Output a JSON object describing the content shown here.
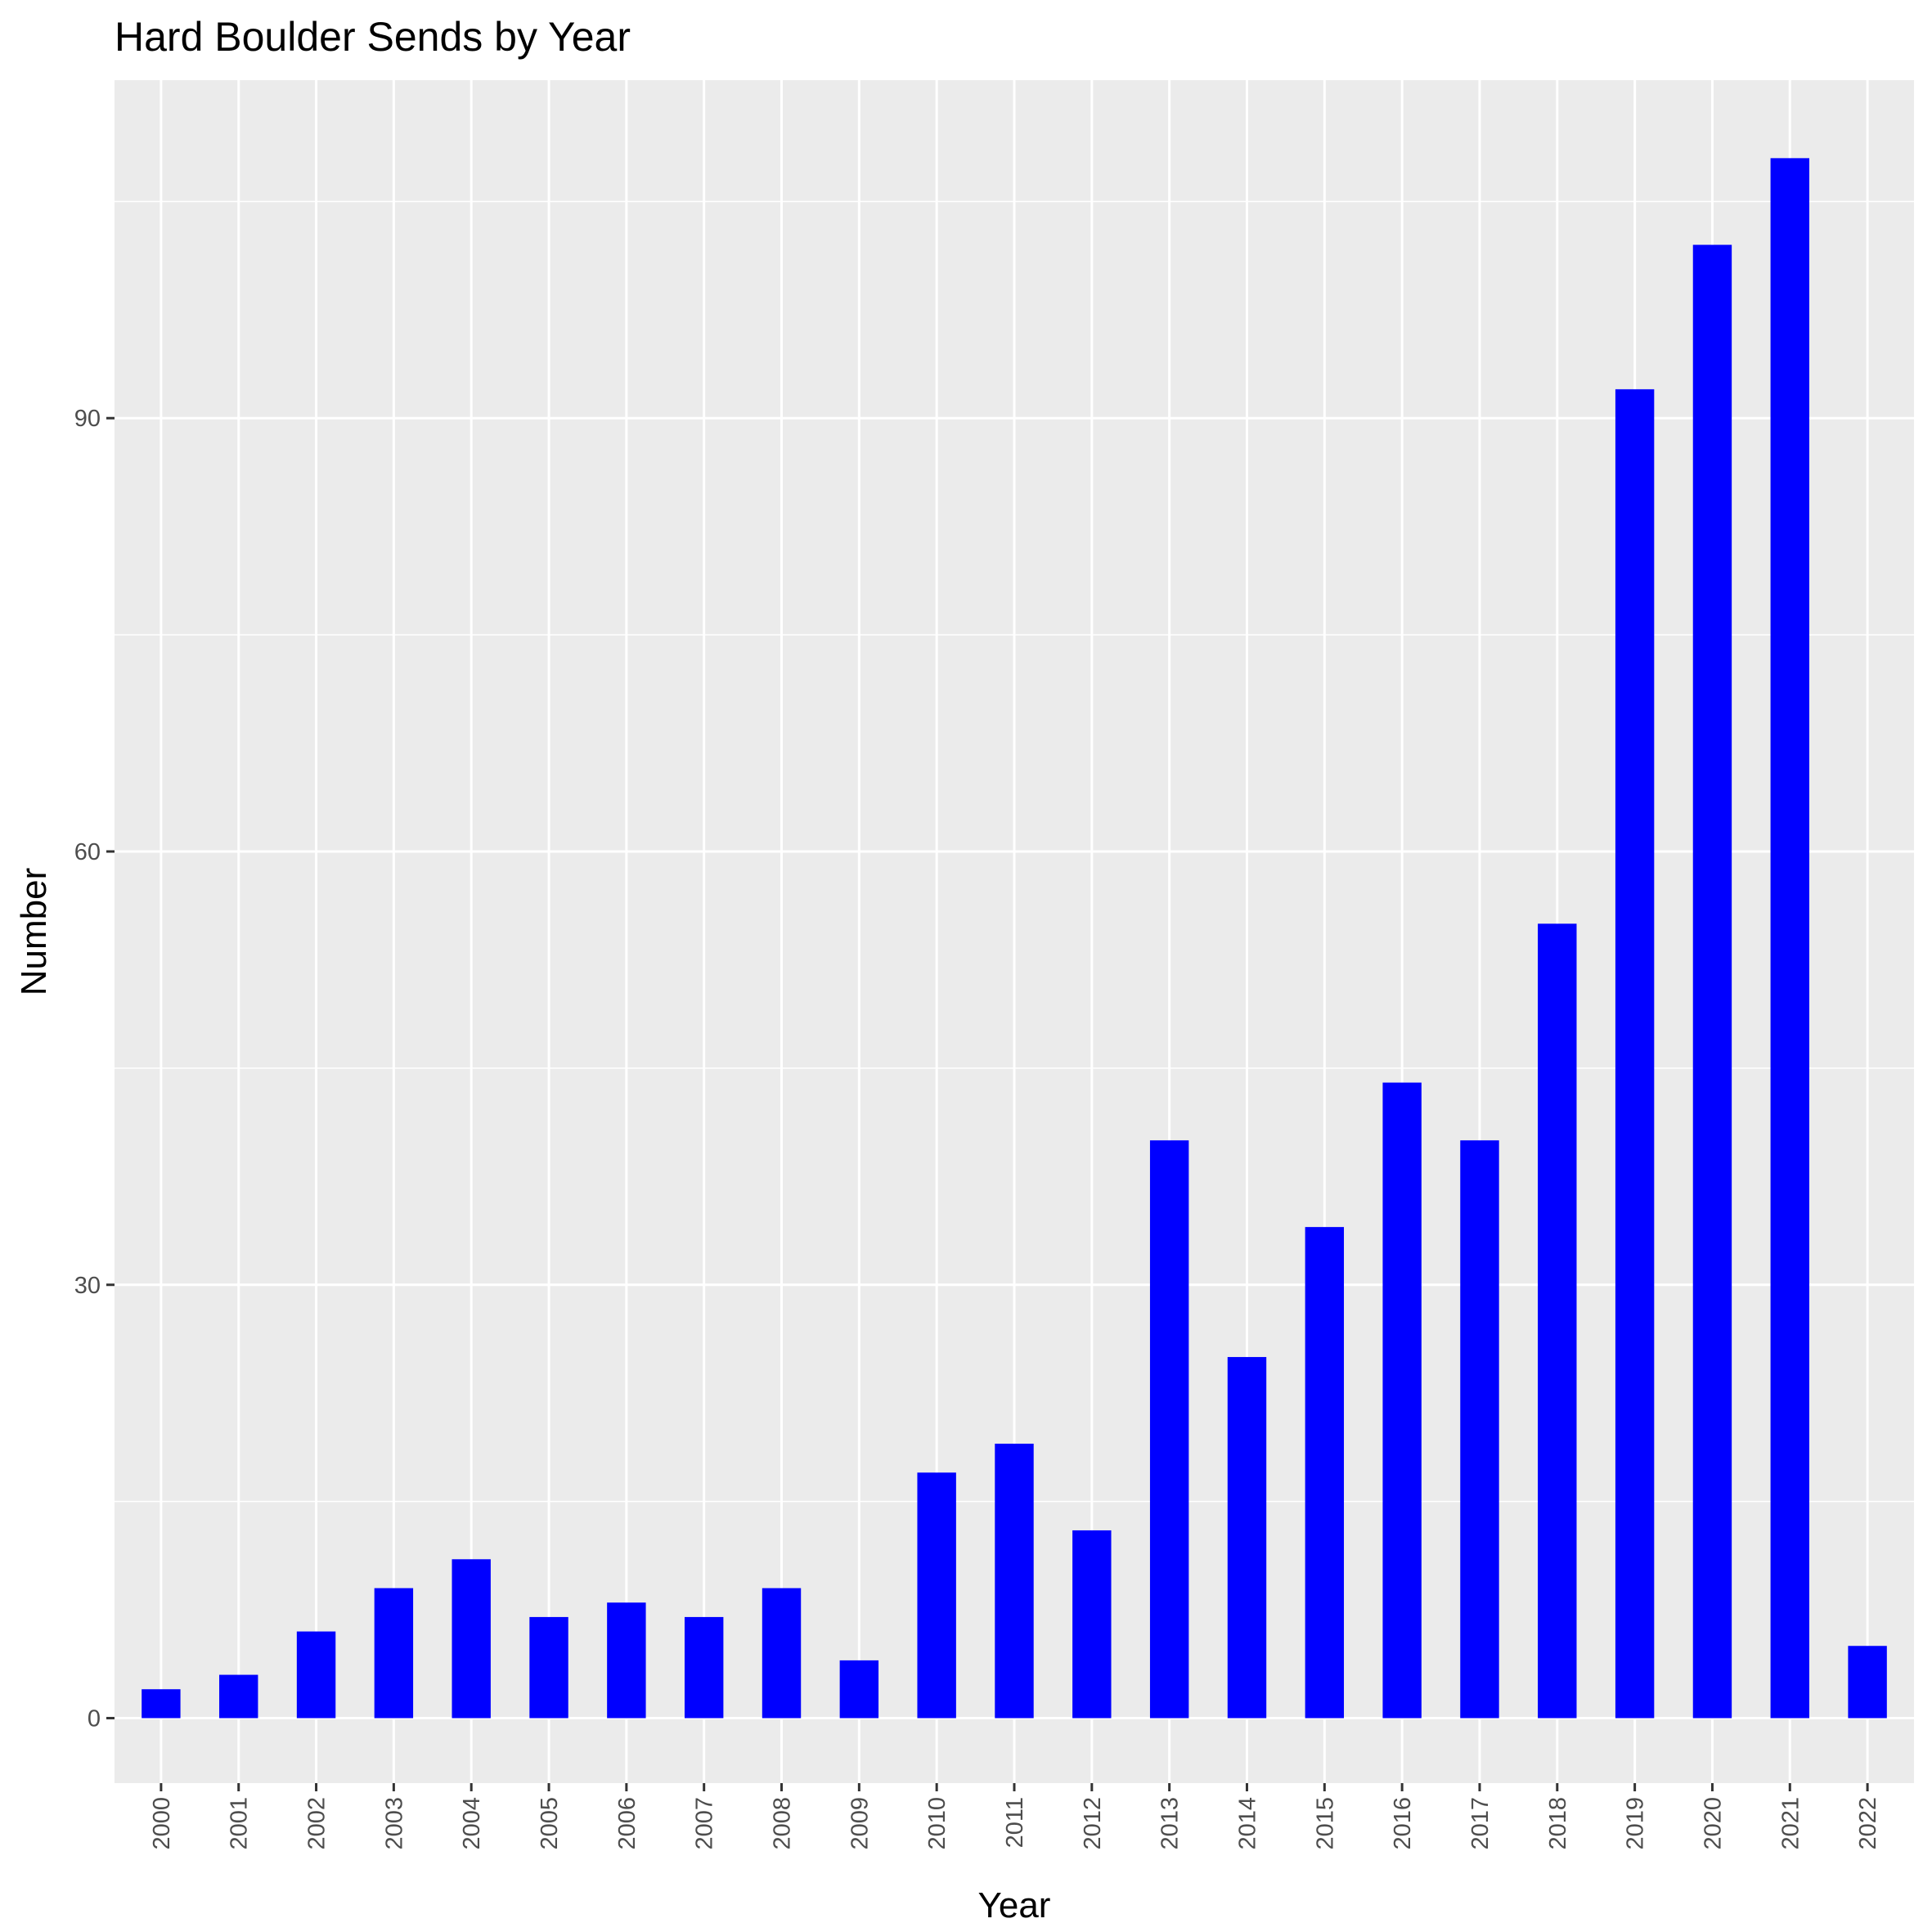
{
  "chart_data": {
    "type": "bar",
    "title": "Hard Boulder Sends by Year",
    "xlabel": "Year",
    "ylabel": "Number",
    "categories": [
      "2000",
      "2001",
      "2002",
      "2003",
      "2004",
      "2005",
      "2006",
      "2007",
      "2008",
      "2009",
      "2010",
      "2011",
      "2012",
      "2013",
      "2014",
      "2015",
      "2016",
      "2017",
      "2018",
      "2019",
      "2020",
      "2021",
      "2022"
    ],
    "values": [
      2,
      3,
      6,
      9,
      11,
      7,
      8,
      7,
      9,
      4,
      17,
      19,
      13,
      40,
      25,
      34,
      44,
      40,
      55,
      92,
      102,
      108,
      5
    ],
    "yticks": [
      0,
      30,
      60,
      90
    ],
    "ylim": [
      -4.5,
      113.4
    ],
    "bar_color": "#0000FF",
    "panel_color": "#EBEBEB",
    "grid_color": "#FFFFFF",
    "grid": true,
    "legend": "none"
  }
}
